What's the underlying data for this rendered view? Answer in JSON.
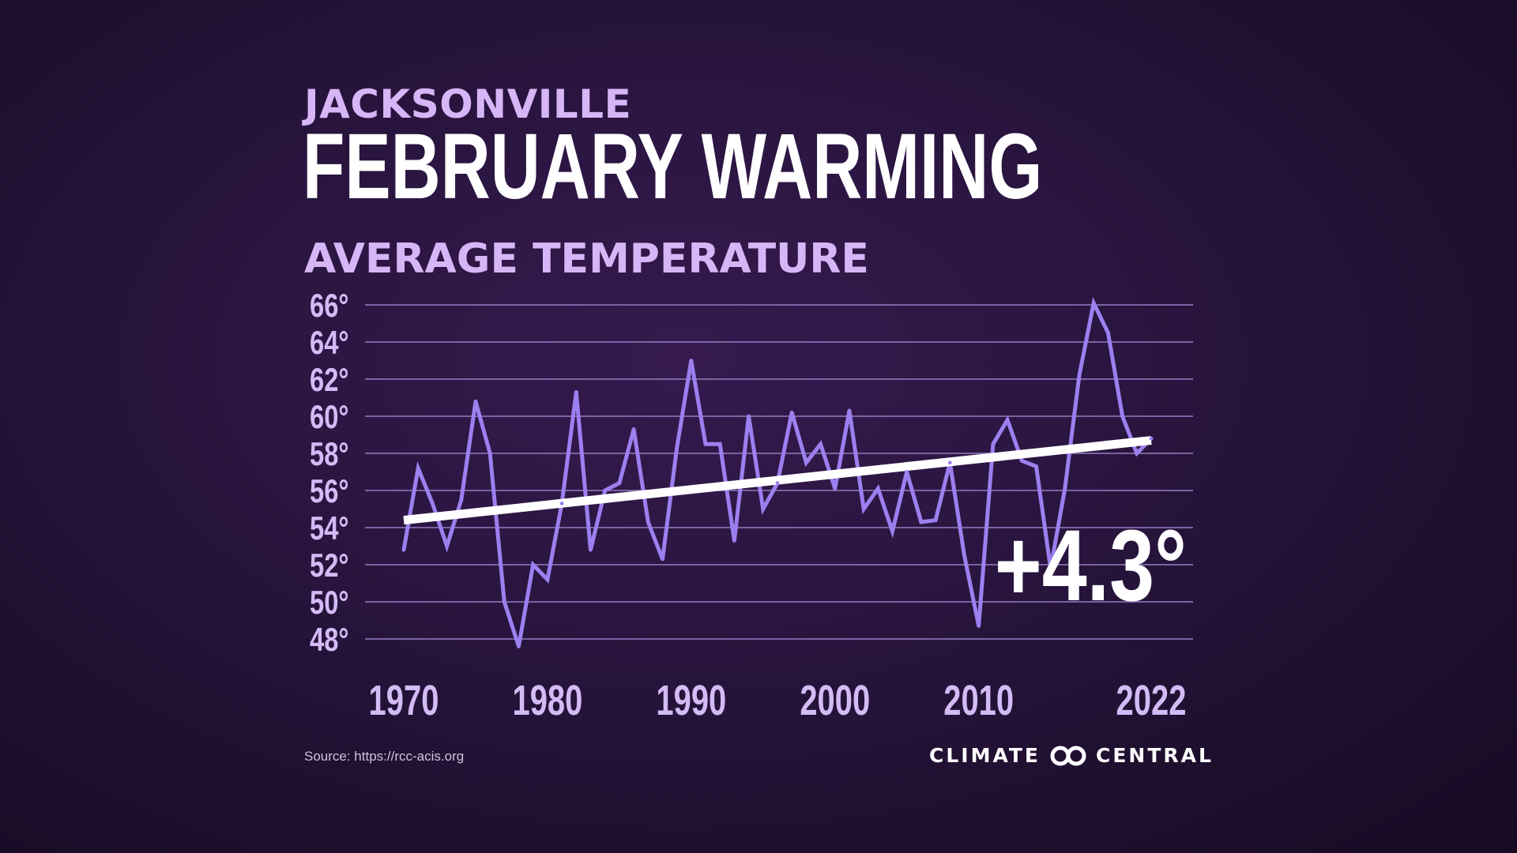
{
  "header": {
    "city": "JACKSONVILLE",
    "title": "FEBRUARY WARMING",
    "subtitle": "AVERAGE TEMPERATURE"
  },
  "footer": {
    "source": "Source: https://rcc-acis.org",
    "brand_left": "CLIMATE",
    "brand_right": "CENTRAL"
  },
  "colors": {
    "background": "#241236",
    "accent_label": "#d7b6f7",
    "series_line": "#9c80f0",
    "trend_line": "#ffffff",
    "gridline": "#7b62a3",
    "tick_label": "#d3bbf6"
  },
  "chart_data": {
    "type": "line",
    "title": "AVERAGE TEMPERATURE",
    "xlabel": "",
    "ylabel": "",
    "ylim": [
      48,
      66
    ],
    "xlim": [
      1970,
      2022
    ],
    "y_ticks": [
      66,
      64,
      62,
      60,
      58,
      56,
      54,
      52,
      50,
      48
    ],
    "y_tick_labels": [
      "66°",
      "64°",
      "62°",
      "60°",
      "58°",
      "56°",
      "54°",
      "52°",
      "50°",
      "48°"
    ],
    "x_tick_labels": [
      "1970",
      "1980",
      "1990",
      "2000",
      "2010",
      "2022"
    ],
    "x_ticks": [
      1970,
      1980,
      1990,
      2000,
      2010,
      2022
    ],
    "grid": true,
    "annotation": "+4.3°",
    "series": [
      {
        "x": [
          1970,
          1971,
          1972,
          1973,
          1974,
          1975,
          1976,
          1977,
          1978,
          1979,
          1980,
          1981,
          1982,
          1983,
          1984,
          1985,
          1986,
          1987,
          1988,
          1989,
          1990,
          1991,
          1992,
          1993,
          1994,
          1995,
          1996,
          1997,
          1998,
          1999,
          2000,
          2001,
          2002,
          2003,
          2004,
          2005,
          2006,
          2007,
          2008,
          2009,
          2010,
          2011,
          2012,
          2013,
          2014,
          2015,
          2016,
          2017,
          2018,
          2019,
          2020,
          2021,
          2022
        ],
        "values": [
          52.8,
          57.2,
          55.3,
          53.0,
          55.5,
          60.8,
          58.0,
          50.0,
          47.6,
          52.0,
          51.2,
          55.3,
          61.3,
          52.8,
          56.0,
          56.4,
          59.3,
          54.3,
          52.3,
          58.3,
          63.0,
          58.5,
          58.5,
          53.3,
          60.0,
          55.0,
          56.4,
          60.2,
          57.5,
          58.5,
          56.1,
          60.3,
          55.0,
          56.1,
          53.8,
          57.0,
          54.3,
          54.4,
          57.5,
          52.5,
          48.7,
          58.5,
          59.8,
          57.6,
          57.3,
          51.8,
          56.1,
          62.2,
          66.1,
          64.5,
          60.0,
          58.0,
          58.8
        ]
      },
      {
        "x": [
          1970,
          2022
        ],
        "values": [
          54.4,
          58.7
        ]
      }
    ]
  }
}
